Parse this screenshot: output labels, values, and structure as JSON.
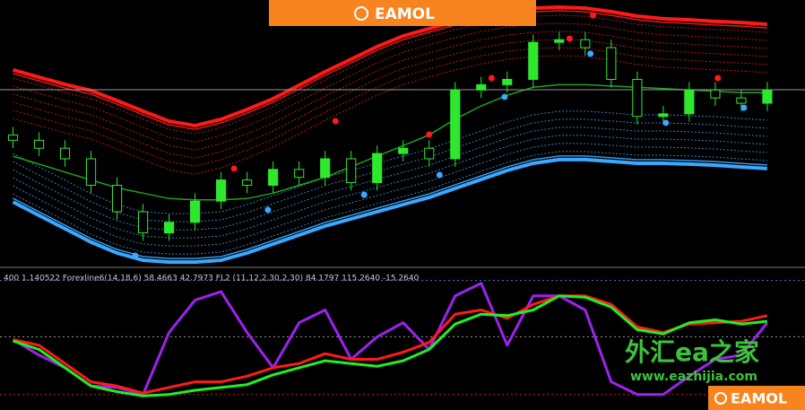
{
  "logo_top": "EAMOL",
  "logo_bottom": "EAMOL",
  "watermark": {
    "title": "外汇ea之家",
    "url": "www.eazhijia.com"
  },
  "chart_data": [
    {
      "type": "candlestick",
      "x": [
        0,
        1,
        2,
        3,
        4,
        5,
        6,
        7,
        8,
        9,
        10,
        11,
        12,
        13,
        14,
        15,
        16,
        17,
        18,
        19,
        20,
        21,
        22,
        23,
        24,
        25,
        26,
        27,
        28,
        29
      ],
      "open": [
        49,
        47,
        44,
        40,
        30,
        20,
        12,
        16,
        24,
        32,
        30,
        36,
        33,
        40,
        31,
        42,
        44,
        40,
        66,
        68,
        70,
        84,
        85,
        82,
        70,
        56,
        57,
        66,
        63,
        61
      ],
      "high": [
        52,
        50,
        47,
        43,
        33,
        23,
        19,
        27,
        35,
        35,
        39,
        39,
        43,
        43,
        45,
        47,
        47,
        69,
        71,
        73,
        87,
        88,
        88,
        85,
        73,
        60,
        69,
        69,
        66,
        69
      ],
      "low": [
        44,
        41,
        37,
        27,
        17,
        9,
        9,
        13,
        21,
        27,
        27,
        30,
        30,
        28,
        28,
        39,
        37,
        37,
        63,
        65,
        67,
        81,
        79,
        67,
        53,
        53,
        54,
        60,
        58,
        58
      ],
      "close": [
        47,
        44,
        40,
        30,
        20,
        12,
        16,
        24,
        32,
        30,
        36,
        33,
        40,
        31,
        42,
        44,
        40,
        66,
        68,
        70,
        84,
        85,
        82,
        70,
        56,
        57,
        66,
        63,
        61,
        66
      ],
      "color": "#2ee82e",
      "xlim": [
        -0.5,
        30.45
      ],
      "ylim": [
        0,
        100
      ],
      "level": {
        "value": 66.1,
        "color": "#9a9a9a"
      },
      "lines": [
        {
          "color": "#ff1a1a",
          "band": "upper",
          "values": [
            73.6,
            70.8,
            68.1,
            65.8,
            62,
            58,
            54.2,
            52.5,
            54.9,
            58.6,
            62.7,
            67.8,
            72.9,
            77.6,
            82.4,
            86.4,
            89.2,
            91.9,
            94.2,
            95.9,
            96.9,
            97.3,
            96.9,
            95.6,
            93.9,
            92.9,
            92.5,
            91.9,
            91.5,
            90.8
          ]
        },
        {
          "color": "#3aa8ff",
          "band": "lower",
          "values": [
            23.7,
            18.6,
            13.6,
            8.5,
            4.4,
            1.7,
            1,
            1,
            1.7,
            4.4,
            7.8,
            11.2,
            14.6,
            17.3,
            20,
            22.7,
            25.4,
            28.8,
            32.2,
            35.6,
            38.3,
            39.7,
            39.7,
            39,
            38.3,
            38.3,
            38,
            37.6,
            36.9,
            36.3
          ]
        },
        {
          "color": "#1fa21f",
          "values": [
            41,
            38,
            35,
            32,
            29,
            27,
            25,
            24.5,
            24.5,
            25,
            27,
            30,
            33,
            37,
            41,
            45,
            49,
            55,
            60,
            64,
            67,
            68,
            68,
            67.5,
            67,
            66.5,
            66,
            65.5,
            65,
            65
          ]
        }
      ],
      "signals": [
        {
          "color": "#ff1a1a",
          "x": [
            8.5,
            12.4,
            16,
            18.4,
            21.4,
            22.3,
            27.1
          ],
          "values": [
            36.3,
            54.2,
            49.2,
            70.5,
            85.4,
            94.2,
            70.5
          ]
        },
        {
          "color": "#3aa8ff",
          "x": [
            4.7,
            9.8,
            13.5,
            16.4,
            18.9,
            22.2,
            25.1,
            28.1
          ],
          "values": [
            3.4,
            20.7,
            26.4,
            33.9,
            63.4,
            79.7,
            53.6,
            59.3
          ]
        }
      ]
    },
    {
      "type": "line",
      "title": "400 1.140522  Forexline6(14,18,6) 58.4663 42.7973  FL2 (11,12,2,30,2,30) 84.1797 115.2640 -15.2640",
      "x": [
        0,
        1,
        2,
        3,
        4,
        5,
        6,
        7,
        8,
        9,
        10,
        11,
        12,
        13,
        14,
        15,
        16,
        17,
        18,
        19,
        20,
        21,
        22,
        23,
        24,
        25,
        26,
        27,
        28,
        29
      ],
      "xlim": [
        -0.5,
        30.45
      ],
      "ylim": [
        0,
        100
      ],
      "levels": [
        {
          "value": 92,
          "color": "#3a6fd0"
        },
        {
          "value": 52,
          "color": "#9a9a9a"
        },
        {
          "value": 11,
          "color": "#d01a1a"
        }
      ],
      "series": [
        {
          "color": "#a020f0",
          "values": [
            50,
            39,
            30,
            17,
            16,
            11,
            55,
            78,
            84,
            55,
            30,
            62,
            71,
            36,
            52,
            62,
            43,
            81,
            90,
            46,
            81,
            81,
            71,
            20,
            11,
            11,
            24,
            36,
            39,
            62
          ]
        },
        {
          "color": "#ff1a1a",
          "values": [
            50,
            46,
            33,
            20,
            17,
            12,
            16,
            20,
            20,
            24,
            30,
            33,
            40,
            36,
            36,
            41,
            48,
            68,
            71,
            65,
            75,
            81,
            81,
            75,
            59,
            55,
            61,
            62,
            63,
            67
          ]
        },
        {
          "color": "#22ee22",
          "values": [
            49,
            43,
            30,
            17,
            13,
            10,
            11,
            14,
            16,
            18,
            25,
            30,
            35,
            33,
            31,
            35,
            43,
            61,
            68,
            67,
            71,
            81,
            80,
            73,
            57,
            54,
            62,
            64,
            61,
            63
          ]
        }
      ]
    }
  ]
}
